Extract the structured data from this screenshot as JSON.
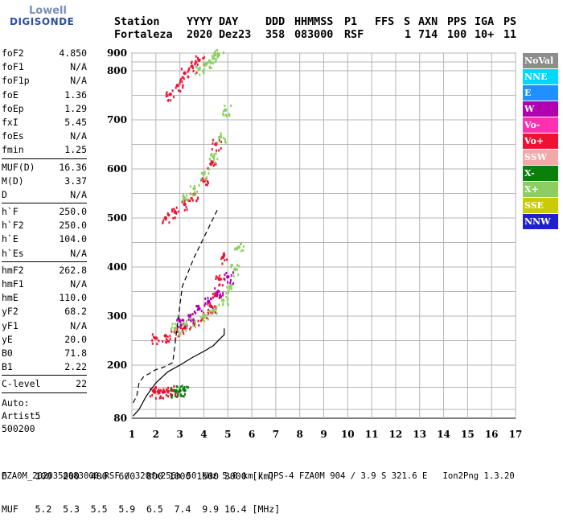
{
  "logo": {
    "line1": "Lowell",
    "line2": "DIGISONDE"
  },
  "header": {
    "row1": [
      "Station",
      "YYYY",
      "DAY",
      "DDD",
      "HHMMSS",
      "P1",
      "FFS",
      "S",
      "AXN",
      "PPS",
      "IGA",
      "PS"
    ],
    "row2": [
      "Fortaleza",
      "2020",
      "Dez23",
      "358",
      "083000",
      "RSF",
      "1",
      "714",
      "100",
      "10+",
      "11"
    ]
  },
  "params": [
    {
      "group": [
        {
          "label": "foF2",
          "value": "4.850"
        },
        {
          "label": "foF1",
          "value": "N/A"
        },
        {
          "label": "foF1p",
          "value": "N/A"
        },
        {
          "label": "foE",
          "value": "1.36"
        },
        {
          "label": "foEp",
          "value": "1.29"
        },
        {
          "label": "fxI",
          "value": "5.45"
        },
        {
          "label": "foEs",
          "value": "N/A"
        },
        {
          "label": "fmin",
          "value": "1.25"
        }
      ]
    },
    {
      "group": [
        {
          "label": "MUF(D)",
          "value": "16.36"
        },
        {
          "label": "M(D)",
          "value": "3.37"
        },
        {
          "label": "D",
          "value": "N/A"
        }
      ]
    },
    {
      "group": [
        {
          "label": "h`F",
          "value": "250.0"
        },
        {
          "label": "h`F2",
          "value": "250.0"
        },
        {
          "label": "h`E",
          "value": "104.0"
        },
        {
          "label": "h`Es",
          "value": "N/A"
        }
      ]
    },
    {
      "group": [
        {
          "label": "hmF2",
          "value": "262.8"
        },
        {
          "label": "hmF1",
          "value": "N/A"
        },
        {
          "label": "hmE",
          "value": "110.0"
        },
        {
          "label": "yF2",
          "value": "68.2"
        },
        {
          "label": "yF1",
          "value": "N/A"
        },
        {
          "label": "yE",
          "value": "20.0"
        },
        {
          "label": "B0",
          "value": "71.8"
        },
        {
          "label": "B1",
          "value": "2.22"
        }
      ]
    },
    {
      "group": [
        {
          "label": "C-level",
          "value": "22"
        }
      ]
    }
  ],
  "autoscaling": [
    "Auto:",
    "Artist5",
    "500200"
  ],
  "legend": [
    {
      "label": "NoVal",
      "color": "#8c8c8c"
    },
    {
      "label": "NNE",
      "color": "#00d8ff"
    },
    {
      "label": "E",
      "color": "#1e90ff"
    },
    {
      "label": "W",
      "color": "#b000b0"
    },
    {
      "label": "Vo-",
      "color": "#ff30b0"
    },
    {
      "label": "Vo+",
      "color": "#ee1133"
    },
    {
      "label": "SSW",
      "color": "#f4a8a8"
    },
    {
      "label": "X-",
      "color": "#0a7f0a"
    },
    {
      "label": "X+",
      "color": "#8ccf60"
    },
    {
      "label": "SSE",
      "color": "#c8cc00"
    },
    {
      "label": "NNW",
      "color": "#2020d0"
    }
  ],
  "footer": {
    "d_row": "D     100  200  400  600  800 1000 1500 3000 [km]",
    "muf_row": "MUF   5.2  5.3  5.5  5.9  6.5  7.4  9.9 16.4 [MHz]",
    "file_line": "FZA0M_2020358083000.RSF / 320fx256h 50 kHz 5.0 km / DPS-4 FZA0M 904 / 3.9 S 321.6 E   Ion2Png 1.3.20"
  },
  "chart_data": {
    "type": "scatter",
    "xlim": [
      1,
      17
    ],
    "ylim": [
      80,
      900
    ],
    "x_ticks": [
      1,
      2,
      3,
      4,
      5,
      6,
      7,
      8,
      9,
      10,
      11,
      12,
      13,
      14,
      15,
      16,
      17
    ],
    "y_ticks": [
      80,
      200,
      300,
      400,
      500,
      600,
      700,
      800,
      900
    ],
    "x_tick_labels": [
      "1",
      "2",
      "3",
      "4",
      "5",
      "6",
      "7",
      "8",
      "9",
      "10",
      "11",
      "12",
      "13",
      "14",
      "15",
      "16",
      "17"
    ],
    "y_tick_labels": [
      "80",
      "200",
      "300",
      "400",
      "500",
      "600",
      "700",
      "800",
      "900"
    ],
    "grid": true,
    "profile": {
      "x": [
        1.05,
        1.3,
        1.6,
        2.0,
        2.5,
        3.0,
        3.5,
        4.0,
        4.4,
        4.7,
        4.85,
        4.85
      ],
      "y": [
        85,
        100,
        130,
        160,
        185,
        200,
        215,
        228,
        240,
        255,
        262,
        275
      ]
    },
    "profile_dashed": {
      "x": [
        1.05,
        1.2,
        1.3,
        1.5,
        1.7,
        2.0,
        2.3,
        2.7,
        3.1,
        3.6,
        4.1,
        4.6
      ],
      "y": [
        115,
        130,
        160,
        175,
        180,
        190,
        195,
        205,
        360,
        420,
        470,
        520
      ]
    },
    "series": [
      {
        "trace": "E-layer",
        "color_key": "Vo+",
        "x": [
          1.9,
          2.1,
          2.3,
          2.5,
          2.7
        ],
        "y": [
          142,
          140,
          139,
          141,
          143
        ]
      },
      {
        "trace": "E-layer X",
        "color_key": "X-",
        "x": [
          2.8,
          3.0,
          3.2
        ],
        "y": [
          142,
          142,
          143
        ]
      },
      {
        "trace": "F2 main",
        "color_key": "Vo+",
        "x": [
          2.0,
          2.4,
          2.8,
          3.2,
          3.6,
          4.0,
          4.3,
          4.5,
          4.65,
          4.8
        ],
        "y": [
          255,
          260,
          268,
          276,
          285,
          298,
          320,
          345,
          375,
          420
        ]
      },
      {
        "trace": "F2 X",
        "color_key": "X+",
        "x": [
          2.8,
          3.2,
          3.6,
          4.0,
          4.4,
          4.8,
          5.1,
          5.3,
          5.45
        ],
        "y": [
          275,
          282,
          290,
          300,
          312,
          332,
          360,
          395,
          440
        ]
      },
      {
        "trace": "F2 W",
        "color_key": "W",
        "x": [
          3.0,
          3.4,
          3.8,
          4.2,
          4.6,
          5.0
        ],
        "y": [
          290,
          300,
          315,
          330,
          350,
          380
        ]
      },
      {
        "trace": "F2 2-hop",
        "color_key": "Vo+",
        "x": [
          2.4,
          2.8,
          3.2,
          3.6,
          4.0,
          4.3,
          4.5
        ],
        "y": [
          500,
          512,
          528,
          548,
          575,
          610,
          650
        ]
      },
      {
        "trace": "F2 2-hop X",
        "color_key": "X+",
        "x": [
          3.2,
          3.6,
          4.0,
          4.4,
          4.7,
          4.9
        ],
        "y": [
          540,
          560,
          590,
          625,
          665,
          720
        ]
      },
      {
        "trace": "F2 3-hop",
        "color_key": "Vo+",
        "x": [
          2.6,
          2.9,
          3.2,
          3.5,
          3.8
        ],
        "y": [
          752,
          770,
          795,
          825,
          860
        ]
      },
      {
        "trace": "F2 3-hop X",
        "color_key": "X+",
        "x": [
          3.8,
          4.1,
          4.4,
          4.6
        ],
        "y": [
          810,
          840,
          870,
          895
        ]
      }
    ]
  }
}
